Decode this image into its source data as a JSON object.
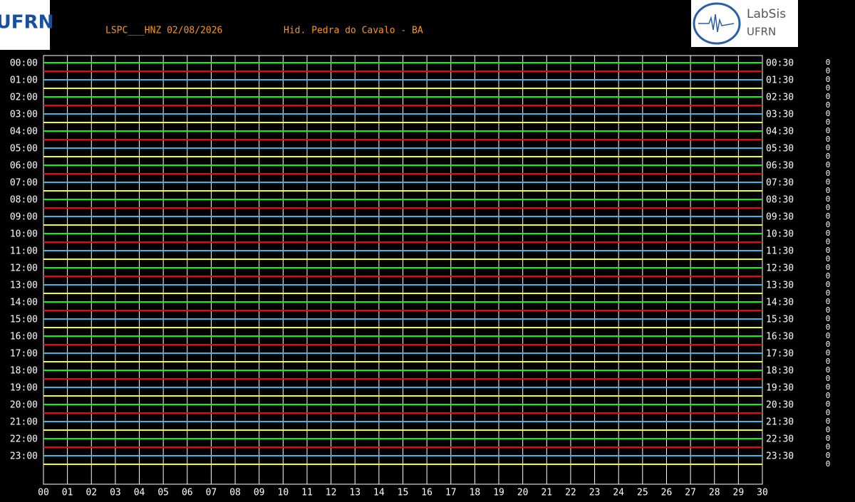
{
  "chart_data": {
    "type": "helicorder",
    "title": "LSPC___HNZ 02/08/2026",
    "subtitle": "Hid. Pedra do Cavalo - BA",
    "logo_left": "UFRN",
    "logo_right": [
      "LabSis",
      "UFRN"
    ],
    "left_labels": [
      "00:00",
      "01:00",
      "02:00",
      "03:00",
      "04:00",
      "05:00",
      "06:00",
      "07:00",
      "08:00",
      "09:00",
      "10:00",
      "11:00",
      "12:00",
      "13:00",
      "14:00",
      "15:00",
      "16:00",
      "17:00",
      "18:00",
      "19:00",
      "20:00",
      "21:00",
      "22:00",
      "23:00"
    ],
    "right_labels": [
      "00:30",
      "01:30",
      "02:30",
      "03:30",
      "04:30",
      "05:30",
      "06:30",
      "07:30",
      "08:30",
      "09:30",
      "10:30",
      "11:30",
      "12:30",
      "13:30",
      "14:30",
      "15:30",
      "16:30",
      "17:30",
      "18:30",
      "19:30",
      "20:30",
      "21:30",
      "22:30",
      "23:30"
    ],
    "scale_labels": [
      "0",
      "0",
      "0",
      "0",
      "0",
      "0",
      "0",
      "0",
      "0",
      "0",
      "0",
      "0",
      "0",
      "0",
      "0",
      "0",
      "0",
      "0",
      "0",
      "0",
      "0",
      "0",
      "0",
      "0",
      "0",
      "0",
      "0",
      "0",
      "0",
      "0",
      "0",
      "0",
      "0",
      "0",
      "0",
      "0",
      "0",
      "0",
      "0",
      "0",
      "0",
      "0",
      "0",
      "0",
      "0",
      "0",
      "0",
      "0"
    ],
    "trace_colors": [
      "#00ff00",
      "#ff0000",
      "#33bbee",
      "#ffff00"
    ],
    "xlim": [
      0,
      30
    ],
    "xticks": [
      {
        "value": 0,
        "label": "00"
      },
      {
        "value": 1,
        "label": "01"
      },
      {
        "value": 2,
        "label": "02"
      },
      {
        "value": 3,
        "label": "03"
      },
      {
        "value": 4,
        "label": "04"
      },
      {
        "value": 5,
        "label": "05"
      },
      {
        "value": 6,
        "label": "06"
      },
      {
        "value": 7,
        "label": "07"
      },
      {
        "value": 8,
        "label": "08"
      },
      {
        "value": 9,
        "label": "09"
      },
      {
        "value": 10,
        "label": "10"
      },
      {
        "value": 11,
        "label": "11"
      },
      {
        "value": 12,
        "label": "12"
      },
      {
        "value": 13,
        "label": "13"
      },
      {
        "value": 14,
        "label": "14"
      },
      {
        "value": 15,
        "label": "15"
      },
      {
        "value": 16,
        "label": "16"
      },
      {
        "value": 17,
        "label": "17"
      },
      {
        "value": 18,
        "label": "18"
      },
      {
        "value": 19,
        "label": "19"
      },
      {
        "value": 20,
        "label": "20"
      },
      {
        "value": 21,
        "label": "21"
      },
      {
        "value": 22,
        "label": "22"
      },
      {
        "value": 23,
        "label": "23"
      },
      {
        "value": 24,
        "label": "24"
      },
      {
        "value": 25,
        "label": "25"
      },
      {
        "value": 26,
        "label": "26"
      },
      {
        "value": 27,
        "label": "27"
      },
      {
        "value": 28,
        "label": "28"
      },
      {
        "value": 29,
        "label": "29"
      },
      {
        "value": 30,
        "label": "30"
      }
    ],
    "grid": true
  }
}
